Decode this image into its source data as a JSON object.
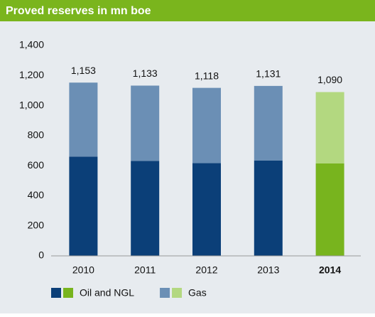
{
  "chart_data": {
    "type": "stacked_bar",
    "title": "Proved reserves in mn boe",
    "categories": [
      "2010",
      "2011",
      "2012",
      "2013",
      "2014"
    ],
    "highlight_category": "2014",
    "series": [
      {
        "name": "Oil and NGL",
        "color": "#0b3f78",
        "highlight_color": "#78b41e",
        "values": [
          660,
          632,
          617,
          635,
          615
        ]
      },
      {
        "name": "Gas",
        "color": "#6b8fb5",
        "highlight_color": "#b3d880",
        "values": [
          493,
          501,
          501,
          496,
          475
        ]
      }
    ],
    "totals": [
      1153,
      1133,
      1118,
      1131,
      1090
    ],
    "total_labels": [
      "1,153",
      "1,133",
      "1,118",
      "1,131",
      "1,090"
    ],
    "ylim": [
      0,
      1400
    ],
    "yticks": [
      0,
      200,
      400,
      600,
      800,
      {
        "value": 1000,
        "label": "1,000"
      },
      {
        "value": 1200,
        "label": "1,200"
      },
      {
        "value": 1400,
        "label": "1,400"
      }
    ],
    "grid": false
  }
}
